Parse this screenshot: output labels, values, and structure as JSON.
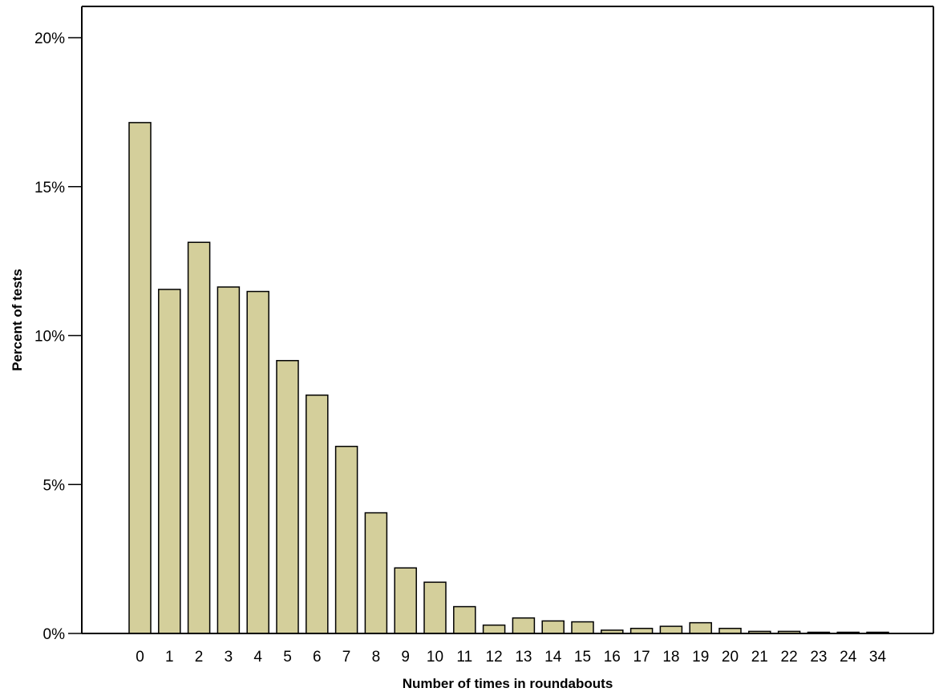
{
  "chart_data": {
    "type": "bar",
    "title": "",
    "xlabel": "Number of times in roundabouts",
    "ylabel": "Percent of tests",
    "categories": [
      "0",
      "1",
      "2",
      "3",
      "4",
      "5",
      "6",
      "7",
      "8",
      "9",
      "10",
      "11",
      "12",
      "13",
      "14",
      "15",
      "16",
      "17",
      "18",
      "19",
      "20",
      "21",
      "22",
      "23",
      "24",
      "34"
    ],
    "values": [
      17.15,
      11.55,
      13.13,
      11.63,
      11.48,
      9.16,
      8.0,
      6.28,
      4.05,
      2.2,
      1.72,
      0.9,
      0.28,
      0.52,
      0.42,
      0.39,
      0.11,
      0.17,
      0.24,
      0.36,
      0.17,
      0.07,
      0.07,
      0.04,
      0.04,
      0.04
    ],
    "ylim": [
      0,
      20
    ],
    "yticks": [
      0,
      5,
      10,
      15,
      20
    ],
    "ytick_labels": [
      "0%",
      "5%",
      "10%",
      "15%",
      "20%"
    ],
    "legend": "none",
    "grid": false,
    "bar_color": "#d4cf9b",
    "bar_edge_color": "#000000"
  }
}
